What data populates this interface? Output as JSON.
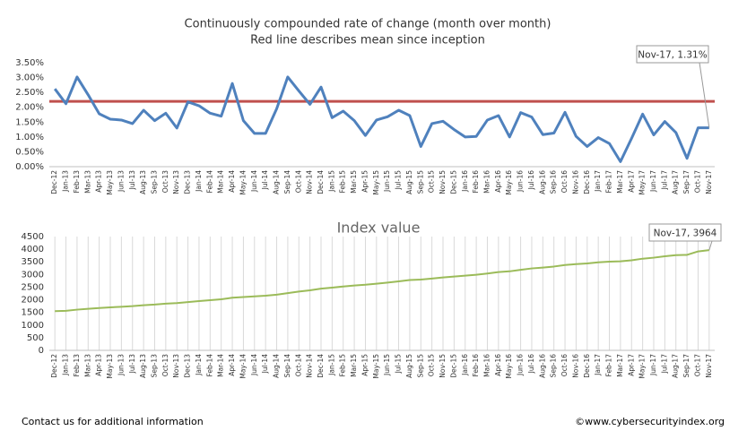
{
  "chart_data": [
    {
      "type": "line",
      "title": "Continuously compounded rate of change (month over month)",
      "subtitle": "Red line describes mean since inception",
      "categories": [
        "Dec-12",
        "Jan-13",
        "Feb-13",
        "Mar-13",
        "Apr-13",
        "May-13",
        "Jun-13",
        "Jul-13",
        "Aug-13",
        "Sep-13",
        "Oct-13",
        "Nov-13",
        "Dec-13",
        "Jan-14",
        "Feb-14",
        "Mar-14",
        "Apr-14",
        "May-14",
        "Jun-14",
        "Jul-14",
        "Aug-14",
        "Sep-14",
        "Oct-14",
        "Nov-14",
        "Dec-14",
        "Jan-15",
        "Feb-15",
        "Mar-15",
        "Apr-15",
        "May-15",
        "Jun-15",
        "Jul-15",
        "Aug-15",
        "Sep-15",
        "Oct-15",
        "Nov-15",
        "Dec-15",
        "Jan-16",
        "Feb-16",
        "Mar-16",
        "Apr-16",
        "May-16",
        "Jun-16",
        "Jul-16",
        "Aug-16",
        "Sep-16",
        "Oct-16",
        "Nov-16",
        "Dec-16",
        "Jan-17",
        "Feb-17",
        "Mar-17",
        "Apr-17",
        "May-17",
        "Jun-17",
        "Jul-17",
        "Aug-17",
        "Sep-17",
        "Oct-17",
        "Nov-17"
      ],
      "series": [
        {
          "color": "#4f81bd",
          "values": [
            2.62,
            2.12,
            3.02,
            2.42,
            1.78,
            1.6,
            1.57,
            1.45,
            1.9,
            1.55,
            1.8,
            1.3,
            2.18,
            2.05,
            1.8,
            1.7,
            2.8,
            1.55,
            1.12,
            1.12,
            1.95,
            3.02,
            2.55,
            2.1,
            2.68,
            1.65,
            1.87,
            1.55,
            1.05,
            1.57,
            1.68,
            1.9,
            1.72,
            0.68,
            1.45,
            1.53,
            1.25,
            1.0,
            1.02,
            1.57,
            1.72,
            1.0,
            1.82,
            1.67,
            1.08,
            1.13,
            1.83,
            1.02,
            0.68,
            0.98,
            0.78,
            0.17,
            0.95,
            1.77,
            1.07,
            1.52,
            1.15,
            0.28,
            1.31,
            1.31
          ]
        }
      ],
      "mean_line": {
        "value": 2.2,
        "color": "#c0504d"
      },
      "annotation": "Nov-17, 1.31%",
      "ylim": [
        0,
        3.5
      ],
      "yticks": [
        {
          "value": 0,
          "label": "0.00%"
        },
        {
          "value": 0.5,
          "label": "0.50%"
        },
        {
          "value": 1,
          "label": "1.00%"
        },
        {
          "value": 1.5,
          "label": "1.50%"
        },
        {
          "value": 2,
          "label": "2.00%"
        },
        {
          "value": 2.5,
          "label": "2.50%"
        },
        {
          "value": 3,
          "label": "3.00%"
        },
        {
          "value": 3.5,
          "label": "3.50%"
        }
      ],
      "grid": false
    },
    {
      "type": "line",
      "title": "Index value",
      "categories": [
        "Dec-12",
        "Jan-13",
        "Feb-13",
        "Mar-13",
        "Apr-13",
        "May-13",
        "Jun-13",
        "Jul-13",
        "Aug-13",
        "Sep-13",
        "Oct-13",
        "Nov-13",
        "Dec-13",
        "Jan-14",
        "Feb-14",
        "Mar-14",
        "Apr-14",
        "May-14",
        "Jun-14",
        "Jul-14",
        "Aug-14",
        "Sep-14",
        "Oct-14",
        "Nov-14",
        "Dec-14",
        "Jan-15",
        "Feb-15",
        "Mar-15",
        "Apr-15",
        "May-15",
        "Jun-15",
        "Jul-15",
        "Aug-15",
        "Sep-15",
        "Oct-15",
        "Nov-15",
        "Dec-15",
        "Jan-16",
        "Feb-16",
        "Mar-16",
        "Apr-16",
        "May-16",
        "Jun-16",
        "Jul-16",
        "Aug-16",
        "Sep-16",
        "Oct-16",
        "Nov-16",
        "Dec-16",
        "Jan-17",
        "Feb-17",
        "Mar-17",
        "Apr-17",
        "May-17",
        "Jun-17",
        "Jul-17",
        "Aug-17",
        "Sep-17",
        "Oct-17",
        "Nov-17"
      ],
      "series": [
        {
          "color": "#9bbb59",
          "values": [
            1550,
            1565,
            1610,
            1645,
            1675,
            1700,
            1725,
            1750,
            1785,
            1810,
            1845,
            1870,
            1910,
            1950,
            1985,
            2020,
            2080,
            2110,
            2135,
            2160,
            2200,
            2265,
            2325,
            2375,
            2440,
            2480,
            2525,
            2565,
            2595,
            2635,
            2680,
            2730,
            2780,
            2800,
            2840,
            2885,
            2920,
            2955,
            2990,
            3040,
            3095,
            3125,
            3185,
            3240,
            3275,
            3315,
            3375,
            3410,
            3435,
            3480,
            3510,
            3520,
            3560,
            3625,
            3665,
            3720,
            3765,
            3775,
            3912,
            3964
          ]
        }
      ],
      "annotation": "Nov-17, 3964",
      "ylim": [
        0,
        4500
      ],
      "yticks": [
        0,
        500,
        1000,
        1500,
        2000,
        2500,
        3000,
        3500,
        4000,
        4500
      ],
      "grid": "x"
    }
  ],
  "footer": {
    "left": "Contact us for additional information",
    "right": "©www.cybersecurityindex.org"
  }
}
